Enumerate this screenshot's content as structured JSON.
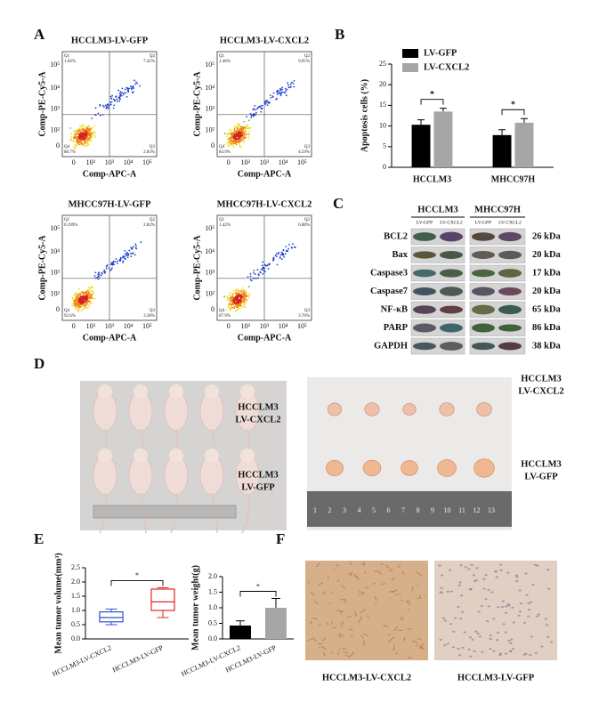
{
  "panel_labels": [
    "A",
    "B",
    "C",
    "D",
    "E",
    "F"
  ],
  "flow": {
    "x_label": "Comp-APC-A",
    "y_label": "Comp-PE-Cy5-A",
    "ticks": [
      "0",
      "10²",
      "10³",
      "10⁴",
      "10⁵"
    ],
    "plots": [
      {
        "title": "HCCLM3-LV-GFP",
        "quadrants": [
          {
            "name": "Q1",
            "value": "1.04%"
          },
          {
            "name": "Q2",
            "value": "7.45%"
          },
          {
            "name": "Q3",
            "value": "2.83%"
          },
          {
            "name": "Q4",
            "value": "88.7%"
          }
        ]
      },
      {
        "title": "HCCLM3-LV-CXCL2",
        "quadrants": [
          {
            "name": "Q1",
            "value": "1.46%"
          },
          {
            "name": "Q2",
            "value": "9.05%"
          },
          {
            "name": "Q3",
            "value": "4.59%"
          },
          {
            "name": "Q4",
            "value": "84.9%"
          }
        ]
      },
      {
        "title": "MHCC97H-LV-GFP",
        "quadrants": [
          {
            "name": "Q1",
            "value": "0.199%"
          },
          {
            "name": "Q2",
            "value": "2.82%"
          },
          {
            "name": "Q3",
            "value": "3.38%"
          },
          {
            "name": "Q4",
            "value": "92.6%"
          }
        ]
      },
      {
        "title": "MHCC97H-LV-CXCL2",
        "quadrants": [
          {
            "name": "Q1",
            "value": "1.42%"
          },
          {
            "name": "Q2",
            "value": "6.88%"
          },
          {
            "name": "Q3",
            "value": "3.76%"
          },
          {
            "name": "Q4",
            "value": "87.9%"
          }
        ]
      }
    ]
  },
  "chart_data": [
    {
      "type": "bar",
      "y_label": "Apoptosis cells (%)",
      "categories": [
        "HCCLM3",
        "MHCC97H"
      ],
      "series": [
        {
          "name": "LV-GFP",
          "color": "#000000",
          "values": [
            10.3,
            7.8
          ],
          "errors": [
            1.2,
            1.3
          ]
        },
        {
          "name": "LV-CXCL2",
          "color": "#a6a6a6",
          "values": [
            13.5,
            10.8
          ],
          "errors": [
            0.8,
            1.0
          ]
        }
      ],
      "ylim": [
        0,
        25
      ],
      "yticks": [
        0,
        5,
        10,
        15,
        20,
        25
      ],
      "legend": "upper left",
      "annotations": [
        "*",
        "*"
      ]
    },
    {
      "type": "box",
      "y_label": "Mean tumor volume(mm³)",
      "categories": [
        "HCCLM3-LV-CXCL2",
        "HCCLM3-LV-GFP"
      ],
      "colors": [
        "#3050d0",
        "#e02828"
      ],
      "min": [
        0.5,
        0.75
      ],
      "q1": [
        0.6,
        1.0
      ],
      "median": [
        0.75,
        1.3
      ],
      "q3": [
        0.95,
        1.75
      ],
      "max": [
        1.05,
        1.8
      ],
      "ylim": [
        0,
        2.5
      ],
      "yticks": [
        {
          "value": 0,
          "label": "0.0"
        },
        {
          "value": 0.5,
          "label": "0.5"
        },
        {
          "value": 1,
          "label": "1.0"
        },
        {
          "value": 1.5,
          "label": "1.5"
        },
        {
          "value": 2,
          "label": "2.0"
        },
        {
          "value": 2.5,
          "label": "2.5"
        }
      ],
      "annotations": [
        "*"
      ]
    },
    {
      "type": "bar",
      "y_label": "Mean tumor weight(g)",
      "categories": [
        "HCCLM3-LV-CXCL2",
        "HCCLM3-LV-GFP"
      ],
      "colors": [
        "#000000",
        "#a6a6a6"
      ],
      "values": [
        0.43,
        1.0
      ],
      "errors": [
        0.15,
        0.3
      ],
      "ylim": [
        0,
        2
      ],
      "yticks": [
        {
          "value": 0,
          "label": "0.0"
        },
        {
          "value": 0.5,
          "label": "0.5"
        },
        {
          "value": 1,
          "label": "1.0"
        },
        {
          "value": 1.5,
          "label": "1.5"
        },
        {
          "value": 2,
          "label": "2.0"
        }
      ],
      "annotations": [
        "*"
      ]
    }
  ],
  "western": {
    "groups": [
      "HCCLM3",
      "MHCC97H"
    ],
    "lanes": [
      "LV-GFP",
      "LV-CXCL2"
    ],
    "rows": [
      {
        "protein": "BCL2",
        "size": "26 kDa"
      },
      {
        "protein": "Bax",
        "size": "20 kDa"
      },
      {
        "protein": "Caspase3",
        "size": "17 kDa"
      },
      {
        "protein": "Caspase7",
        "size": "20 kDa"
      },
      {
        "protein": "NF-κB",
        "size": "65 kDa"
      },
      {
        "protein": "PARP",
        "size": "86 kDa"
      },
      {
        "protein": "GAPDH",
        "size": "38 kDa"
      }
    ]
  },
  "photos": {
    "mice_labels": [
      {
        "line": "HCCLM3",
        "group": "LV-CXCL2"
      },
      {
        "line": "HCCLM3",
        "group": "LV-GFP"
      }
    ],
    "tumor_labels": [
      {
        "line": "HCCLM3",
        "group": "LV-CXCL2"
      },
      {
        "line": "HCCLM3",
        "group": "LV-GFP"
      }
    ],
    "ruler": [
      1,
      2,
      3,
      4,
      5,
      6,
      7,
      8,
      9,
      10,
      11,
      12,
      13
    ]
  },
  "ihc": {
    "captions": [
      "HCCLM3-LV-CXCL2",
      "HCCLM3-LV-GFP"
    ]
  }
}
